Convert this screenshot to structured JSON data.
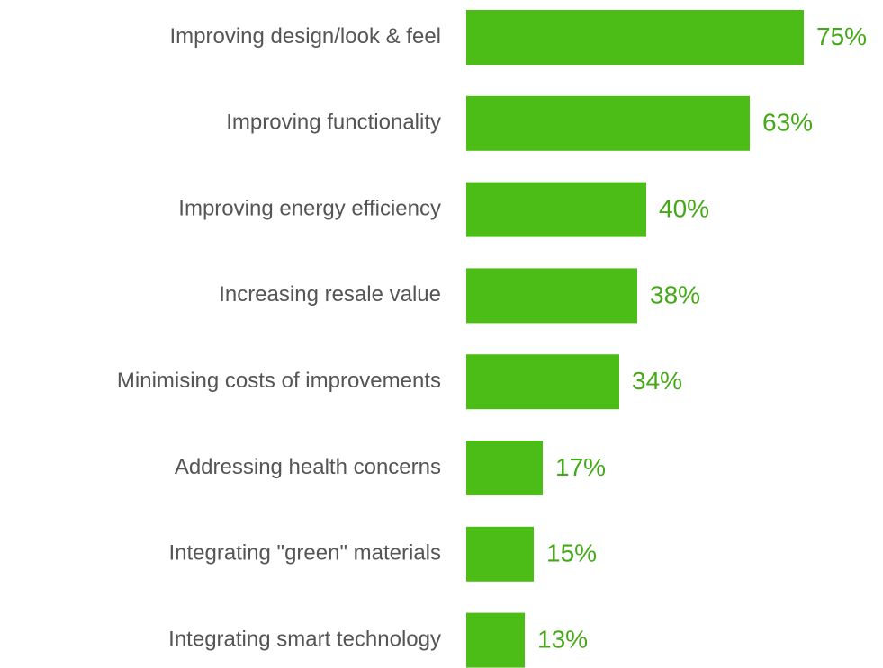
{
  "chart_data": {
    "type": "bar",
    "orientation": "horizontal",
    "categories": [
      "Improving design/look & feel",
      "Improving functionality",
      "Improving energy efficiency",
      "Increasing resale value",
      "Minimising costs of improvements",
      "Addressing health concerns",
      "Integrating \"green\" materials",
      "Integrating smart technology"
    ],
    "values": [
      75,
      63,
      40,
      38,
      34,
      17,
      15,
      13
    ],
    "value_labels": [
      "75%",
      "63%",
      "40%",
      "38%",
      "34%",
      "17%",
      "15%",
      "13%"
    ],
    "color": "#4cbd16",
    "label_color": "#45a818"
  }
}
